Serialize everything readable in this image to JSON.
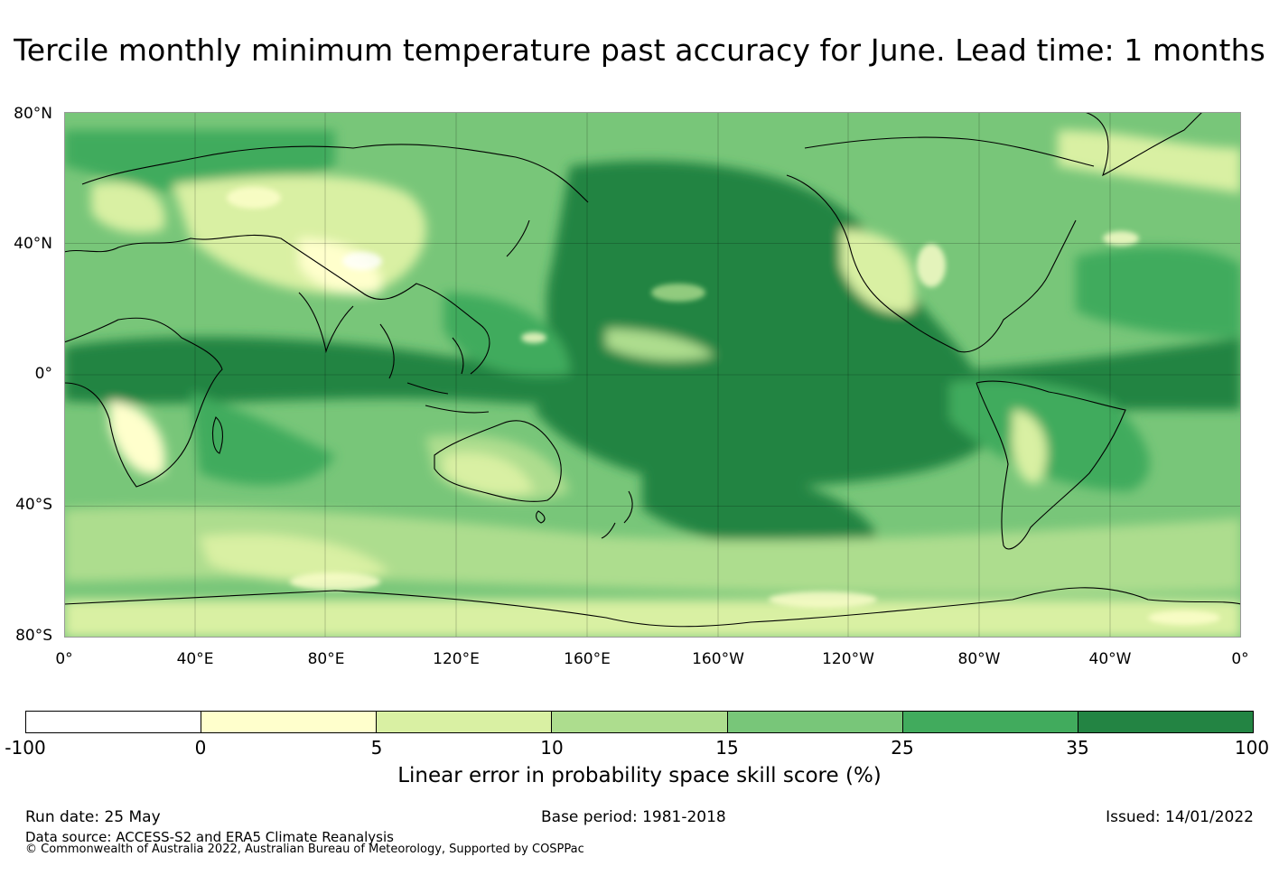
{
  "title": "Tercile monthly minimum temperature past accuracy for June. Lead time: 1 months",
  "map": {
    "lat_labels": [
      "80°N",
      "40°N",
      "0°",
      "40°S",
      "80°S"
    ],
    "lon_labels": [
      "0°",
      "40°E",
      "80°E",
      "120°E",
      "160°E",
      "160°W",
      "120°W",
      "80°W",
      "40°W",
      "0°"
    ]
  },
  "colorbar": {
    "label": "Linear error in probability space skill score (%)",
    "ticks": [
      "-100",
      "0",
      "5",
      "10",
      "15",
      "25",
      "35",
      "100"
    ],
    "colors": [
      "#ffffff",
      "#ffffcc",
      "#d9f0a3",
      "#addd8e",
      "#78c679",
      "#41ab5d",
      "#238443"
    ]
  },
  "footer": {
    "run_date": "Run date: 25 May",
    "base_period": "Base period: 1981-2018",
    "issued": "Issued: 14/01/2022",
    "data_source": "Data source: ACCESS-S2 and ERA5 Climate Reanalysis",
    "copyright": "© Commonwealth of Australia 2022, Australian Bureau of Meteorology, Supported by COSPPac"
  }
}
